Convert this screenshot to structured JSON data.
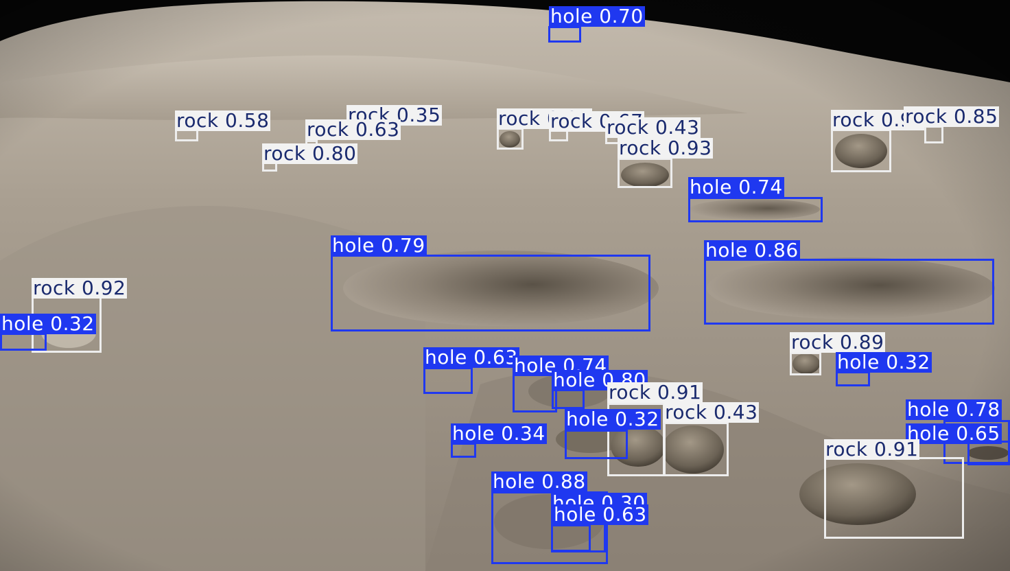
{
  "image": {
    "description_colors": {
      "sky": "#050505",
      "surface_light": "#b9ae9f",
      "surface_mid": "#948a7d",
      "surface_dark": "#5d554b"
    }
  },
  "class_colors": {
    "rock": "#ededed",
    "hole": "#1f38f0"
  },
  "detections": [
    {
      "cls": "hole",
      "label": "hole 0.70"
    },
    {
      "cls": "rock",
      "label": "rock 0.58"
    },
    {
      "cls": "rock",
      "label": "rock 0.35"
    },
    {
      "cls": "rock",
      "label": "rock 0.63"
    },
    {
      "cls": "rock",
      "label": "rock 0.80"
    },
    {
      "cls": "rock",
      "label": "rock 0.94"
    },
    {
      "cls": "rock",
      "label": "rock 0.67"
    },
    {
      "cls": "rock",
      "label": "rock 0.43"
    },
    {
      "cls": "rock",
      "label": "rock 0.93"
    },
    {
      "cls": "rock",
      "label": "rock 0.92"
    },
    {
      "cls": "rock",
      "label": "rock 0.85"
    },
    {
      "cls": "hole",
      "label": "hole 0.74"
    },
    {
      "cls": "hole",
      "label": "hole 0.79"
    },
    {
      "cls": "hole",
      "label": "hole 0.86"
    },
    {
      "cls": "rock",
      "label": "rock 0.92"
    },
    {
      "cls": "hole",
      "label": "hole 0.32"
    },
    {
      "cls": "rock",
      "label": "rock 0.89"
    },
    {
      "cls": "hole",
      "label": "hole 0.32"
    },
    {
      "cls": "hole",
      "label": "hole 0.63"
    },
    {
      "cls": "hole",
      "label": "hole 0.74"
    },
    {
      "cls": "hole",
      "label": "hole 0.80"
    },
    {
      "cls": "rock",
      "label": "rock 0.91"
    },
    {
      "cls": "hole",
      "label": "hole 0.32"
    },
    {
      "cls": "rock",
      "label": "rock 0.43"
    },
    {
      "cls": "hole",
      "label": "hole 0.34"
    },
    {
      "cls": "hole",
      "label": "hole 0.78"
    },
    {
      "cls": "hole",
      "label": "hole 0.65"
    },
    {
      "cls": "rock",
      "label": "rock 0.91"
    },
    {
      "cls": "hole",
      "label": "hole 0.88"
    },
    {
      "cls": "hole",
      "label": "hole 0.30"
    },
    {
      "cls": "hole",
      "label": "hole 0.63"
    }
  ]
}
